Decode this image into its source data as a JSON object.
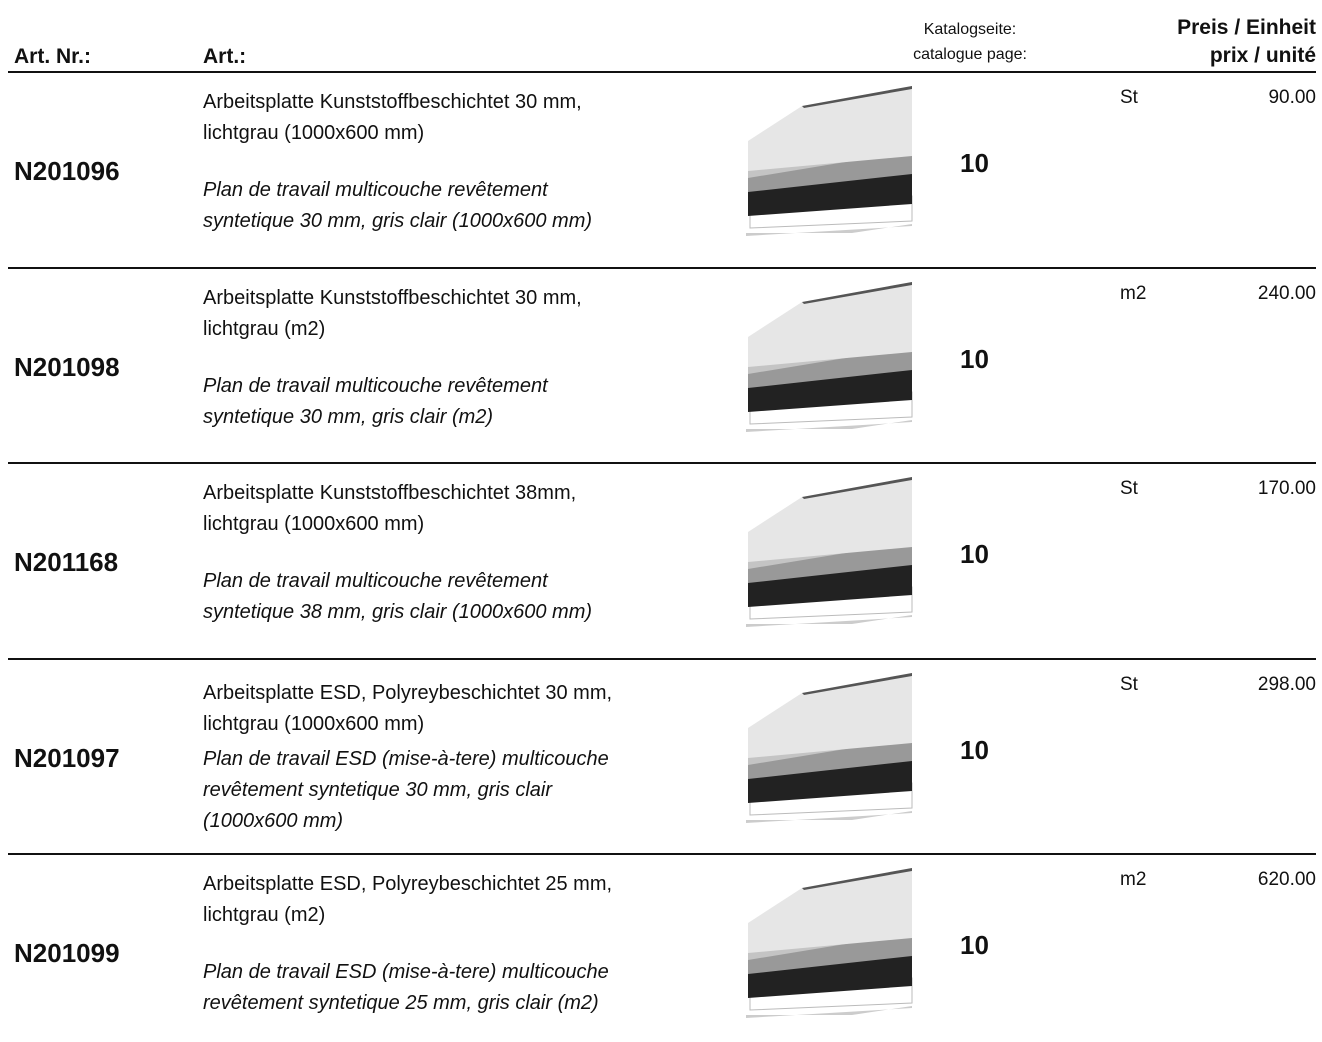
{
  "header": {
    "art_nr": "Art. Nr.:",
    "art": "Art.:",
    "catalog_de": "Katalogseite:",
    "catalog_fr": "catalogue page:",
    "price_de": "Preis / Einheit",
    "price_fr": "prix / unité"
  },
  "rows": [
    {
      "number": "N201096",
      "de": [
        "Arbeitsplatte Kunststoffbeschichtet 30 mm,",
        "lichtgrau (1000x600 mm)"
      ],
      "fr": [
        "Plan de travail multicouche revêtement",
        "syntetique 30 mm, gris clair (1000x600 mm)"
      ],
      "page": 10,
      "unit": "St",
      "price": "90.00"
    },
    {
      "number": "N201098",
      "de": [
        "Arbeitsplatte Kunststoffbeschichtet 30 mm,",
        "lichtgrau (m2)"
      ],
      "fr": [
        "Plan de travail multicouche revêtement",
        "syntetique 30 mm, gris clair (m2)"
      ],
      "page": 10,
      "unit": "m2",
      "price": "240.00"
    },
    {
      "number": "N201168",
      "de": [
        "Arbeitsplatte Kunststoffbeschichtet 38mm,",
        "lichtgrau (1000x600 mm)"
      ],
      "fr": [
        "Plan de travail multicouche revêtement",
        "syntetique 38 mm, gris clair (1000x600 mm)"
      ],
      "page": 10,
      "unit": "St",
      "price": "170.00"
    },
    {
      "number": "N201097",
      "de": [
        "Arbeitsplatte ESD, Polyreybeschichtet 30 mm,",
        "lichtgrau (1000x600 mm)"
      ],
      "fr": [
        "Plan de travail ESD (mise-à-tere) multicouche",
        "revêtement syntetique 30 mm, gris clair",
        "(1000x600 mm)"
      ],
      "page": 10,
      "unit": "St",
      "price": "298.00"
    },
    {
      "number": "N201099",
      "de": [
        "Arbeitsplatte ESD, Polyreybeschichtet 25 mm,",
        "lichtgrau (m2)"
      ],
      "fr": [
        "Plan de travail ESD (mise-à-tere) multicouche",
        "revêtement syntetique 25 mm, gris clair (m2)"
      ],
      "page": 10,
      "unit": "m2",
      "price": "620.00"
    }
  ]
}
